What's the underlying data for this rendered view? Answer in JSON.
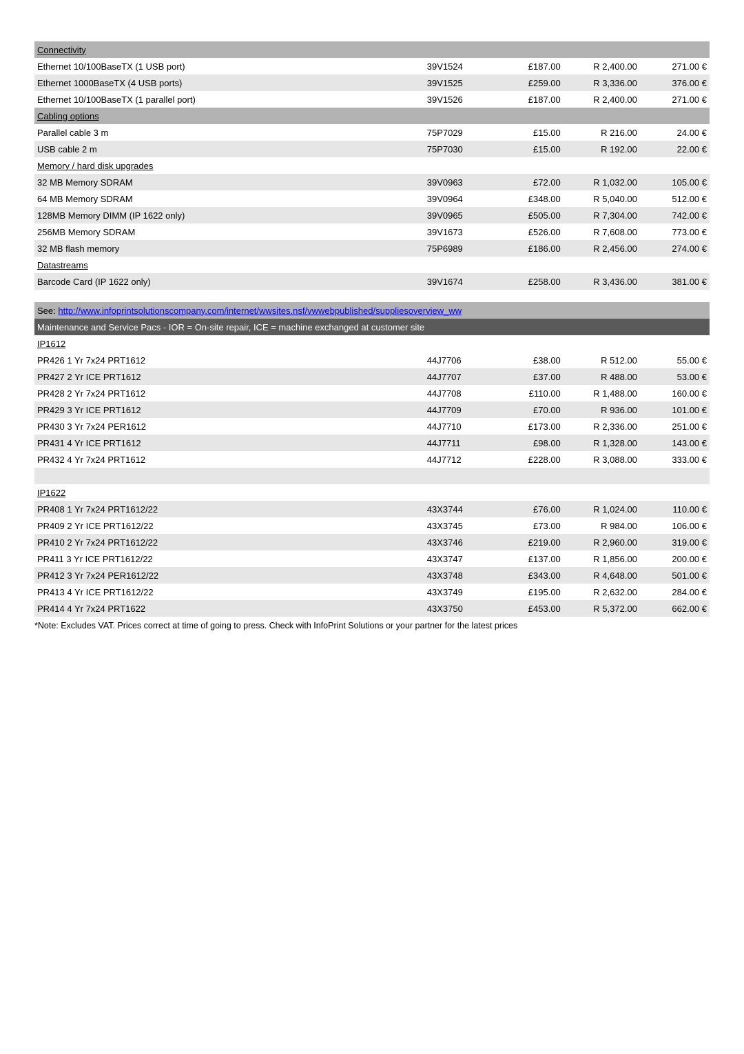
{
  "colors": {
    "section_bg": "#b3b3b3",
    "alt_bg": "#e6e6e6",
    "dark_bg": "#5a5a5a",
    "dark_fg": "#ffffff",
    "link": "#0000ee",
    "body_bg": "#ffffff",
    "text": "#000000"
  },
  "table1": {
    "sections": [
      {
        "header": "Connectivity",
        "rows": [
          {
            "desc": "Ethernet 10/100BaseTX (1 USB port)",
            "code": "39V1524",
            "gbp": "£187.00",
            "rand": "R 2,400.00",
            "eur": "271.00 €",
            "alt": false
          },
          {
            "desc": "Ethernet 1000BaseTX (4 USB ports)",
            "code": "39V1525",
            "gbp": "£259.00",
            "rand": "R 3,336.00",
            "eur": "376.00 €",
            "alt": true
          },
          {
            "desc": "Ethernet 10/100BaseTX (1 parallel port)",
            "code": "39V1526",
            "gbp": "£187.00",
            "rand": "R 2,400.00",
            "eur": "271.00 €",
            "alt": false
          }
        ]
      },
      {
        "header": "Cabling options",
        "rows": [
          {
            "desc": "Parallel cable 3 m",
            "code": "75P7029",
            "gbp": "£15.00",
            "rand": "R 216.00",
            "eur": "24.00 €",
            "alt": false
          },
          {
            "desc": "USB cable 2 m",
            "code": "75P7030",
            "gbp": "£15.00",
            "rand": "R 192.00",
            "eur": "22.00 €",
            "alt": true
          }
        ]
      },
      {
        "header": "Memory / hard disk upgrades",
        "rows": [
          {
            "desc": "32 MB Memory SDRAM",
            "code": "39V0963",
            "gbp": "£72.00",
            "rand": "R 1,032.00",
            "eur": "105.00 €",
            "alt": true
          },
          {
            "desc": "64 MB Memory SDRAM",
            "code": "39V0964",
            "gbp": "£348.00",
            "rand": "R 5,040.00",
            "eur": "512.00 €",
            "alt": false
          },
          {
            "desc": "128MB Memory DIMM (IP 1622 only)",
            "code": "39V0965",
            "gbp": "£505.00",
            "rand": "R 7,304.00",
            "eur": "742.00 €",
            "alt": true
          },
          {
            "desc": "256MB Memory SDRAM",
            "code": "39V1673",
            "gbp": "£526.00",
            "rand": "R 7,608.00",
            "eur": "773.00 €",
            "alt": false
          },
          {
            "desc": "32 MB flash memory",
            "code": "75P6989",
            "gbp": "£186.00",
            "rand": "R 2,456.00",
            "eur": "274.00 €",
            "alt": true
          }
        ]
      },
      {
        "header": "Datastreams",
        "rows": [
          {
            "desc": "Barcode Card (IP 1622 only)",
            "code": "39V1674",
            "gbp": "£258.00",
            "rand": "R 3,436.00",
            "eur": "381.00 €",
            "alt": true
          }
        ]
      }
    ]
  },
  "link_row": {
    "prefix": "See:   ",
    "url_text": "http://www.infoprintsolutionscompany.com/internet/wwsites.nsf/vwwebpublished/suppliesoverview_ww"
  },
  "maintenance_header": "Maintenance and Service Pacs  - IOR = On-site repair, ICE = machine exchanged at customer site",
  "table2": {
    "groups": [
      {
        "header": "IP1612",
        "rows": [
          {
            "desc": "PR426 1 Yr 7x24 PRT1612",
            "code": "44J7706",
            "gbp": "£38.00",
            "rand": "R 512.00",
            "eur": "55.00 €",
            "alt": false
          },
          {
            "desc": "PR427 2 Yr ICE PRT1612",
            "code": "44J7707",
            "gbp": "£37.00",
            "rand": "R 488.00",
            "eur": "53.00 €",
            "alt": true
          },
          {
            "desc": "PR428 2 Yr 7x24 PRT1612",
            "code": "44J7708",
            "gbp": "£110.00",
            "rand": "R 1,488.00",
            "eur": "160.00 €",
            "alt": false
          },
          {
            "desc": "PR429 3 Yr ICE PRT1612",
            "code": "44J7709",
            "gbp": "£70.00",
            "rand": "R 936.00",
            "eur": "101.00 €",
            "alt": true
          },
          {
            "desc": "PR430 3 Yr 7x24 PER1612",
            "code": "44J7710",
            "gbp": "£173.00",
            "rand": "R 2,336.00",
            "eur": "251.00 €",
            "alt": false
          },
          {
            "desc": "PR431 4 Yr ICE PRT1612",
            "code": "44J7711",
            "gbp": "£98.00",
            "rand": "R 1,328.00",
            "eur": "143.00 €",
            "alt": true
          },
          {
            "desc": "PR432 4 Yr 7x24 PRT1612",
            "code": "44J7712",
            "gbp": "£228.00",
            "rand": "R 3,088.00",
            "eur": "333.00 €",
            "alt": false
          }
        ]
      },
      {
        "header": "IP1622",
        "rows": [
          {
            "desc": "PR408 1 Yr 7x24 PRT1612/22",
            "code": "43X3744",
            "gbp": "£76.00",
            "rand": "R 1,024.00",
            "eur": "110.00 €",
            "alt": true
          },
          {
            "desc": "PR409 2 Yr ICE PRT1612/22",
            "code": "43X3745",
            "gbp": "£73.00",
            "rand": "R 984.00",
            "eur": "106.00 €",
            "alt": false
          },
          {
            "desc": "PR410 2 Yr 7x24 PRT1612/22",
            "code": "43X3746",
            "gbp": "£219.00",
            "rand": "R 2,960.00",
            "eur": "319.00 €",
            "alt": true
          },
          {
            "desc": "PR411 3 Yr ICE PRT1612/22",
            "code": "43X3747",
            "gbp": "£137.00",
            "rand": "R 1,856.00",
            "eur": "200.00 €",
            "alt": false
          },
          {
            "desc": "PR412 3 Yr 7x24 PER1612/22",
            "code": "43X3748",
            "gbp": "£343.00",
            "rand": "R 4,648.00",
            "eur": "501.00 €",
            "alt": true
          },
          {
            "desc": "PR413 4 Yr ICE PRT1612/22",
            "code": "43X3749",
            "gbp": "£195.00",
            "rand": "R 2,632.00",
            "eur": "284.00 €",
            "alt": false
          },
          {
            "desc": "PR414 4 Yr 7x24 PRT1622",
            "code": "43X3750",
            "gbp": "£453.00",
            "rand": "R 5,372.00",
            "eur": "662.00 €",
            "alt": true
          }
        ]
      }
    ]
  },
  "footnote": "*Note: Excludes VAT. Prices correct at time of going to press. Check with InfoPrint Solutions  or your partner for the latest prices"
}
